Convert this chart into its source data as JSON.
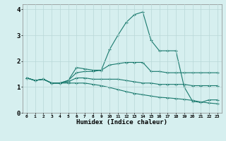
{
  "xlabel": "Humidex (Indice chaleur)",
  "ylabel": "",
  "xlim": [
    -0.5,
    23.5
  ],
  "ylim": [
    0,
    4.2
  ],
  "bg_color": "#d6efef",
  "grid_color": "#b8d8d8",
  "line_color": "#1a7a6e",
  "xticks": [
    0,
    1,
    2,
    3,
    4,
    5,
    6,
    7,
    8,
    9,
    10,
    11,
    12,
    13,
    14,
    15,
    16,
    17,
    18,
    19,
    20,
    21,
    22,
    23
  ],
  "yticks": [
    0,
    1,
    2,
    3,
    4
  ],
  "lines": [
    [
      1.35,
      1.25,
      1.3,
      1.15,
      1.15,
      1.25,
      1.75,
      1.7,
      1.65,
      1.65,
      2.45,
      3.0,
      3.5,
      3.8,
      3.9,
      2.8,
      2.4,
      2.4,
      2.4,
      1.0,
      0.45,
      0.4,
      0.5,
      0.5
    ],
    [
      1.35,
      1.25,
      1.3,
      1.15,
      1.15,
      1.25,
      1.55,
      1.6,
      1.6,
      1.65,
      1.85,
      1.9,
      1.95,
      1.95,
      1.95,
      1.6,
      1.6,
      1.55,
      1.55,
      1.55,
      1.55,
      1.55,
      1.55,
      1.55
    ],
    [
      1.35,
      1.25,
      1.3,
      1.15,
      1.15,
      1.2,
      1.35,
      1.35,
      1.3,
      1.3,
      1.3,
      1.3,
      1.25,
      1.2,
      1.15,
      1.15,
      1.1,
      1.1,
      1.1,
      1.1,
      1.05,
      1.05,
      1.05,
      1.05
    ],
    [
      1.35,
      1.25,
      1.3,
      1.15,
      1.15,
      1.15,
      1.15,
      1.15,
      1.1,
      1.05,
      0.98,
      0.9,
      0.82,
      0.75,
      0.7,
      0.65,
      0.6,
      0.58,
      0.55,
      0.52,
      0.48,
      0.42,
      0.38,
      0.35
    ]
  ]
}
